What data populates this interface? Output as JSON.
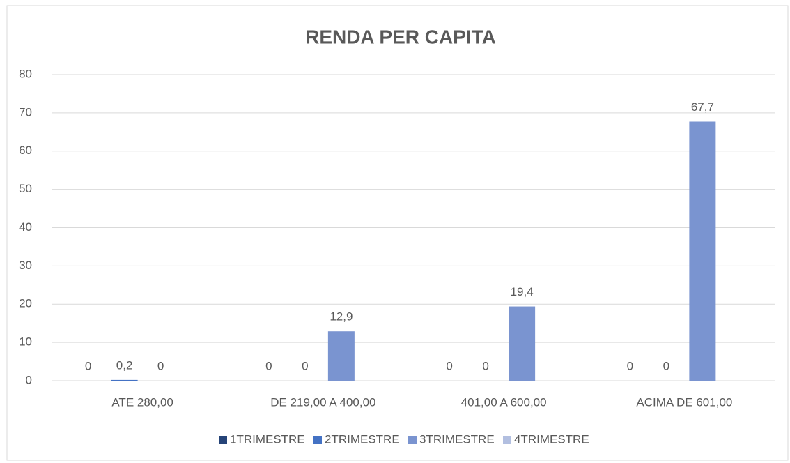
{
  "chart_data": {
    "type": "bar",
    "title": "RENDA PER CAPITA",
    "categories": [
      "ATE 280,00",
      "DE 219,00 A 400,00",
      "401,00 A 600,00",
      "ACIMA DE 601,00"
    ],
    "series": [
      {
        "name": "1TRIMESTRE",
        "color": "#264478",
        "values": [
          0,
          0,
          0,
          0
        ],
        "value_labels": [
          "0",
          "0",
          "0",
          "0"
        ]
      },
      {
        "name": "2TRIMESTRE",
        "color": "#4472c4",
        "values": [
          0.2,
          0,
          0,
          0
        ],
        "value_labels": [
          "0,2",
          "0",
          "0",
          "0"
        ]
      },
      {
        "name": "3TRIMESTRE",
        "color": "#7a94d0",
        "values": [
          0,
          12.9,
          19.4,
          67.7
        ],
        "value_labels": [
          "0",
          "12,9",
          "19,4",
          "67,7"
        ]
      },
      {
        "name": "4TRIMESTRE",
        "color": "#b2bfe0",
        "values": [
          null,
          null,
          null,
          null
        ],
        "value_labels": [
          null,
          null,
          null,
          null
        ]
      }
    ],
    "ylim": [
      0,
      80
    ],
    "yticks": [
      0,
      10,
      20,
      30,
      40,
      50,
      60,
      70,
      80
    ],
    "grid": true,
    "legend": "bottom"
  }
}
